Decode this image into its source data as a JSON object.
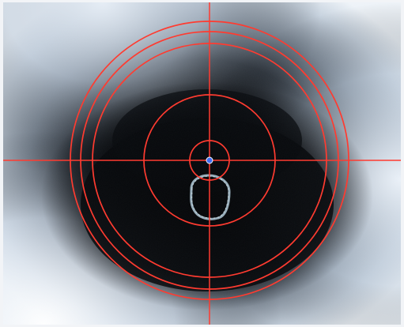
{
  "screen": {
    "type": "camera-reticle-view",
    "reticle": {
      "color": "#ff3b30",
      "center_marker_color": "#3f6ef0",
      "rings": 6,
      "crosshair": true
    },
    "feed": {
      "center_color": "#050608",
      "edge_color": "#dfe8f3",
      "mid_tone": "#5a6573",
      "specimen_color": "#9fb6c4"
    }
  }
}
